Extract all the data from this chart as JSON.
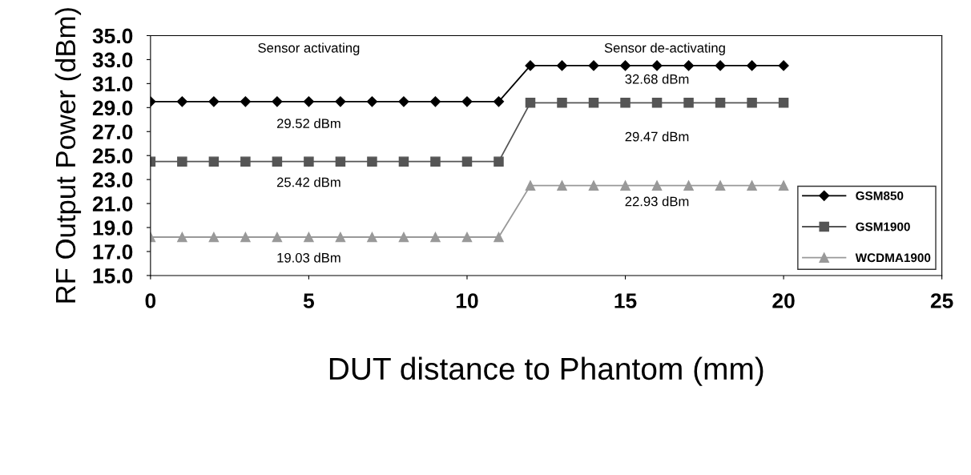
{
  "chart_data": {
    "type": "line",
    "xlabel": "DUT distance to Phantom (mm)",
    "ylabel": "RF Output Power (dBm)",
    "x": [
      0,
      1,
      2,
      3,
      4,
      5,
      6,
      7,
      8,
      9,
      10,
      11,
      12,
      13,
      14,
      15,
      16,
      17,
      18,
      19,
      20
    ],
    "series": [
      {
        "name": "GSM850",
        "color": "#000000",
        "marker": "diamond",
        "values": [
          29.5,
          29.5,
          29.5,
          29.5,
          29.5,
          29.5,
          29.5,
          29.5,
          29.5,
          29.5,
          29.5,
          29.5,
          32.5,
          32.5,
          32.5,
          32.5,
          32.5,
          32.5,
          32.5,
          32.5,
          32.5
        ]
      },
      {
        "name": "GSM1900",
        "color": "#555555",
        "marker": "square",
        "values": [
          24.5,
          24.5,
          24.5,
          24.5,
          24.5,
          24.5,
          24.5,
          24.5,
          24.5,
          24.5,
          24.5,
          24.5,
          29.4,
          29.4,
          29.4,
          29.4,
          29.4,
          29.4,
          29.4,
          29.4,
          29.4
        ]
      },
      {
        "name": "WCDMA1900",
        "color": "#999999",
        "marker": "triangle",
        "values": [
          18.2,
          18.2,
          18.2,
          18.2,
          18.2,
          18.2,
          18.2,
          18.2,
          18.2,
          18.2,
          18.2,
          18.2,
          22.5,
          22.5,
          22.5,
          22.5,
          22.5,
          22.5,
          22.5,
          22.5,
          22.5
        ]
      }
    ],
    "xlim": [
      0,
      25
    ],
    "xticks": [
      0,
      5,
      10,
      15,
      20,
      25
    ],
    "ylim": [
      15,
      35
    ],
    "yticks": [
      {
        "value": 15,
        "label": "15.0"
      },
      {
        "value": 17,
        "label": "17.0"
      },
      {
        "value": 19,
        "label": "19.0"
      },
      {
        "value": 21,
        "label": "21.0"
      },
      {
        "value": 23,
        "label": "23.0"
      },
      {
        "value": 25,
        "label": "25.0"
      },
      {
        "value": 27,
        "label": "27.0"
      },
      {
        "value": 29,
        "label": "29.0"
      },
      {
        "value": 31,
        "label": "31.0"
      },
      {
        "value": 33,
        "label": "33.0"
      },
      {
        "value": 35,
        "label": "35.0"
      }
    ],
    "annotations": [
      "Sensor activating",
      "Sensor de-activating",
      "29.52 dBm",
      "32.68 dBm",
      "25.42 dBm",
      "29.47 dBm",
      "19.03 dBm",
      "22.93 dBm"
    ],
    "grid": false,
    "legend": "bottom right",
    "line_style": "solid"
  }
}
